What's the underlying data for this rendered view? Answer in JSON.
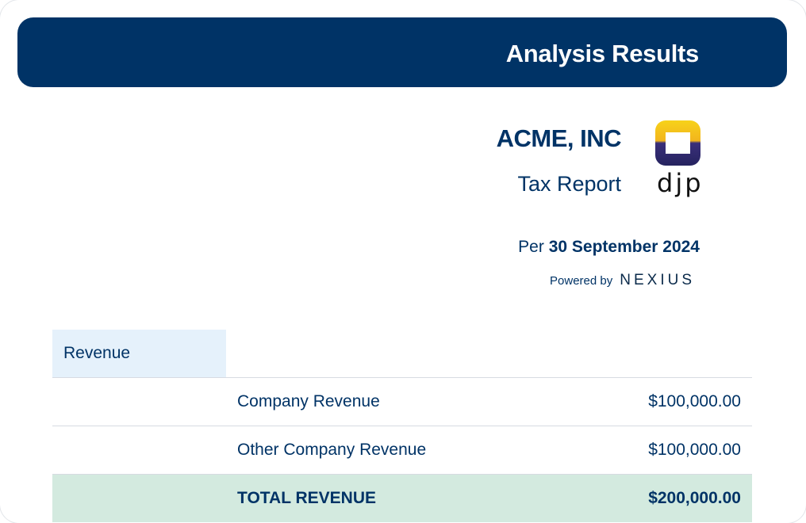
{
  "header": {
    "title": "Analysis Results"
  },
  "report": {
    "company_name": "ACME, INC",
    "subtitle": "Tax Report",
    "period_prefix": "Per",
    "period_date": "30 September 2024",
    "powered_by_label": "Powered by",
    "powered_by_brand": "NEXIUS"
  },
  "logo": {
    "text": "djp",
    "colors": {
      "outer_top": "#f7d21a",
      "outer_bottom": "#2c2a73",
      "inner": "#ffffff"
    }
  },
  "table": {
    "section_label": "Revenue",
    "rows": [
      {
        "label": "Company Revenue",
        "value": "$100,000.00"
      },
      {
        "label": "Other Company Revenue",
        "value": "$100,000.00"
      }
    ],
    "total": {
      "label": "TOTAL REVENUE",
      "value": "$200,000.00"
    }
  },
  "colors": {
    "primary": "#003366",
    "section_bg": "#e5f1fb",
    "total_bg": "#d3eadf"
  }
}
